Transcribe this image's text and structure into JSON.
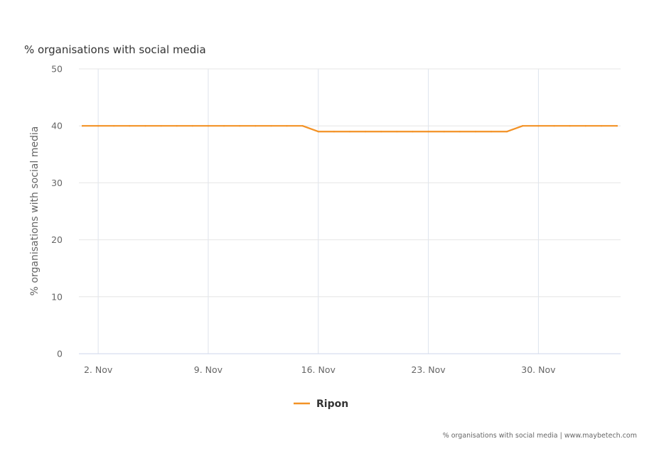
{
  "colors": {
    "series": "#f39226",
    "grid": "#e6e6e6",
    "xgrid": "#dde3ec",
    "axis": "#ccd6eb"
  },
  "chart_data": {
    "type": "line",
    "title": "% organisations with social media",
    "ylabel": "% organisations with social media",
    "xlabel": "",
    "ylim": [
      0,
      50
    ],
    "yticks": [
      "0",
      "10",
      "20",
      "30",
      "40",
      "50"
    ],
    "xlim": [
      "2020-11-01",
      "2020-12-05"
    ],
    "xtick_dates": [
      "2020-11-02",
      "2020-11-09",
      "2020-11-16",
      "2020-11-23",
      "2020-11-30"
    ],
    "xticks": [
      "2. Nov",
      "9. Nov",
      "16. Nov",
      "23. Nov",
      "30. Nov"
    ],
    "grid": true,
    "legend_position": "bottom-center",
    "series": [
      {
        "name": "Ripon",
        "points": [
          [
            "2020-11-01",
            40
          ],
          [
            "2020-11-02",
            40
          ],
          [
            "2020-11-03",
            40
          ],
          [
            "2020-11-04",
            40
          ],
          [
            "2020-11-05",
            40
          ],
          [
            "2020-11-06",
            40
          ],
          [
            "2020-11-07",
            40
          ],
          [
            "2020-11-08",
            40
          ],
          [
            "2020-11-09",
            40
          ],
          [
            "2020-11-10",
            40
          ],
          [
            "2020-11-11",
            40
          ],
          [
            "2020-11-12",
            40
          ],
          [
            "2020-11-13",
            40
          ],
          [
            "2020-11-14",
            40
          ],
          [
            "2020-11-15",
            40
          ],
          [
            "2020-11-16",
            39
          ],
          [
            "2020-11-17",
            39
          ],
          [
            "2020-11-18",
            39
          ],
          [
            "2020-11-19",
            39
          ],
          [
            "2020-11-20",
            39
          ],
          [
            "2020-11-21",
            39
          ],
          [
            "2020-11-22",
            39
          ],
          [
            "2020-11-23",
            39
          ],
          [
            "2020-11-24",
            39
          ],
          [
            "2020-11-25",
            39
          ],
          [
            "2020-11-26",
            39
          ],
          [
            "2020-11-27",
            39
          ],
          [
            "2020-11-28",
            39
          ],
          [
            "2020-11-29",
            40
          ],
          [
            "2020-11-30",
            40
          ],
          [
            "2020-12-01",
            40
          ],
          [
            "2020-12-02",
            40
          ],
          [
            "2020-12-03",
            40
          ],
          [
            "2020-12-04",
            40
          ],
          [
            "2020-12-05",
            40
          ]
        ]
      }
    ],
    "credit": "% organisations with social media | www.maybetech.com"
  }
}
